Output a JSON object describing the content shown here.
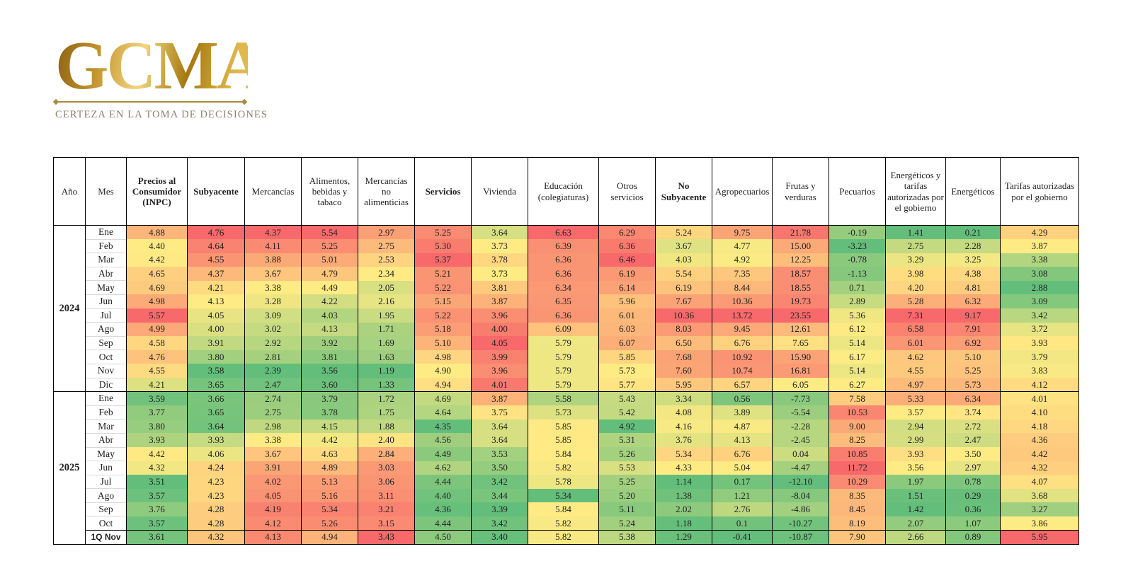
{
  "logo": {
    "text": "GCMA",
    "tagline": "CERTEZA EN LA TOMA DE DECISIONES",
    "gold_color": "#C0912A",
    "tagline_color": "#8B8073"
  },
  "chart_data": {
    "type": "heatmap",
    "title": "",
    "row_header_columns": [
      "Año",
      "Mes"
    ],
    "value_columns": [
      "Precios al Consumidor (INPC)",
      "Subyacente",
      "Mercancías",
      "Alimentos, bebidas y tabaco",
      "Mercancías no alimenticias",
      "Servicios",
      "Vivienda",
      "Educación (colegiaturas)",
      "Otros servicios",
      "No Subyacente",
      "Agropecuarios",
      "Frutas y verduras",
      "Pecuarios",
      "Energéticos y tarifas autorizadas por el gobierno",
      "Energéticos",
      "Tarifas autorizadas por el gobierno"
    ],
    "bold_column_indexes": [
      0,
      1,
      5,
      9
    ],
    "color_scale": {
      "low": "#63BE7B",
      "mid": "#FFEB84",
      "high": "#F8696B",
      "midpoint": "per-column median",
      "scope": "per-column",
      "high_values_are": "red"
    },
    "groups": [
      {
        "year": "2024",
        "rows": [
          {
            "month": "Ene",
            "values": [
              "4.88",
              "4.76",
              "4.37",
              "5.54",
              "2.97",
              "5.25",
              "3.64",
              "6.63",
              "6.29",
              "5.24",
              "9.75",
              "21.78",
              "-0.19",
              "1.41",
              "0.21",
              "4.29"
            ]
          },
          {
            "month": "Feb",
            "values": [
              "4.40",
              "4.64",
              "4.11",
              "5.25",
              "2.75",
              "5.30",
              "3.73",
              "6.39",
              "6.36",
              "3.67",
              "4.77",
              "15.00",
              "-3.23",
              "2.75",
              "2.28",
              "3.87"
            ]
          },
          {
            "month": "Mar",
            "values": [
              "4.42",
              "4.55",
              "3.88",
              "5.01",
              "2.53",
              "5.37",
              "3.78",
              "6.36",
              "6.46",
              "4.03",
              "4.92",
              "12.25",
              "-0.78",
              "3.29",
              "3.25",
              "3.38"
            ]
          },
          {
            "month": "Abr",
            "values": [
              "4.65",
              "4.37",
              "3.67",
              "4.79",
              "2.34",
              "5.21",
              "3.73",
              "6.36",
              "6.19",
              "5.54",
              "7.35",
              "18.57",
              "-1.13",
              "3.98",
              "4.38",
              "3.08"
            ]
          },
          {
            "month": "May",
            "values": [
              "4.69",
              "4.21",
              "3.38",
              "4.49",
              "2.05",
              "5.22",
              "3.81",
              "6.34",
              "6.14",
              "6.19",
              "8.44",
              "18.55",
              "0.71",
              "4.20",
              "4.81",
              "2.88"
            ]
          },
          {
            "month": "Jun",
            "values": [
              "4.98",
              "4.13",
              "3.28",
              "4.22",
              "2.16",
              "5.15",
              "3.87",
              "6.35",
              "5.96",
              "7.67",
              "10.36",
              "19.73",
              "2.89",
              "5.28",
              "6.32",
              "3.09"
            ]
          },
          {
            "month": "Jul",
            "values": [
              "5.57",
              "4.05",
              "3.09",
              "4.03",
              "1.95",
              "5.22",
              "3.96",
              "6.36",
              "6.01",
              "10.36",
              "13.72",
              "23.55",
              "5.36",
              "7.31",
              "9.17",
              "3.42"
            ]
          },
          {
            "month": "Ago",
            "values": [
              "4.99",
              "4.00",
              "3.02",
              "4.13",
              "1.71",
              "5.18",
              "4.00",
              "6.09",
              "6.03",
              "8.03",
              "9.45",
              "12.61",
              "6.12",
              "6.58",
              "7.91",
              "3.72"
            ]
          },
          {
            "month": "Sep",
            "values": [
              "4.58",
              "3.91",
              "2.92",
              "3.92",
              "1.69",
              "5.10",
              "4.05",
              "5.79",
              "6.07",
              "6.50",
              "6.76",
              "7.65",
              "5.14",
              "6.01",
              "6.92",
              "3.93"
            ]
          },
          {
            "month": "Oct",
            "values": [
              "4.76",
              "3.80",
              "2.81",
              "3.81",
              "1.63",
              "4.98",
              "3.99",
              "5.79",
              "5.85",
              "7.68",
              "10.92",
              "15.90",
              "6.17",
              "4.62",
              "5.10",
              "3.79"
            ]
          },
          {
            "month": "Nov",
            "values": [
              "4.55",
              "3.58",
              "2.39",
              "3.56",
              "1.19",
              "4.90",
              "3.96",
              "5.79",
              "5.73",
              "7.60",
              "10.74",
              "16.81",
              "5.14",
              "4.55",
              "5.25",
              "3.83"
            ]
          },
          {
            "month": "Dic",
            "values": [
              "4.21",
              "3.65",
              "2.47",
              "3.60",
              "1.33",
              "4.94",
              "4.01",
              "5.79",
              "5.77",
              "5.95",
              "6.57",
              "6.05",
              "6.27",
              "4.97",
              "5.73",
              "4.12"
            ]
          }
        ]
      },
      {
        "year": "2025",
        "rows": [
          {
            "month": "Ene",
            "values": [
              "3.59",
              "3.66",
              "2.74",
              "3.79",
              "1.72",
              "4.69",
              "3.87",
              "5.58",
              "5.43",
              "3.34",
              "0.56",
              "-7.73",
              "7.58",
              "5.33",
              "6.34",
              "4.01"
            ]
          },
          {
            "month": "Feb",
            "values": [
              "3.77",
              "3.65",
              "2.75",
              "3.78",
              "1.75",
              "4.64",
              "3.75",
              "5.73",
              "5.42",
              "4.08",
              "3.89",
              "-5.54",
              "10.53",
              "3.57",
              "3.74",
              "4.10"
            ]
          },
          {
            "month": "Mar",
            "values": [
              "3.80",
              "3.64",
              "2.98",
              "4.15",
              "1.88",
              "4.35",
              "3.64",
              "5.85",
              "4.92",
              "4.16",
              "4.87",
              "-2.28",
              "9.00",
              "2.94",
              "2.72",
              "4.18"
            ]
          },
          {
            "month": "Abr",
            "values": [
              "3.93",
              "3.93",
              "3.38",
              "4.42",
              "2.40",
              "4.56",
              "3.64",
              "5.85",
              "5.31",
              "3.76",
              "4.13",
              "-2.45",
              "8.25",
              "2.99",
              "2.47",
              "4.36"
            ]
          },
          {
            "month": "May",
            "values": [
              "4.42",
              "4.06",
              "3.67",
              "4.63",
              "2.84",
              "4.49",
              "3.53",
              "5.84",
              "5.26",
              "5.34",
              "6.76",
              "0.04",
              "10.85",
              "3.93",
              "3.50",
              "4.42"
            ]
          },
          {
            "month": "Jun",
            "values": [
              "4.32",
              "4.24",
              "3.91",
              "4.89",
              "3.03",
              "4.62",
              "3.50",
              "5.82",
              "5.53",
              "4.33",
              "5.04",
              "-4.47",
              "11.72",
              "3.56",
              "2.97",
              "4.32"
            ]
          },
          {
            "month": "Jul",
            "values": [
              "3.51",
              "4.23",
              "4.02",
              "5.13",
              "3.06",
              "4.44",
              "3.42",
              "5.78",
              "5.25",
              "1.14",
              "0.17",
              "-12.10",
              "10.29",
              "1.97",
              "0.78",
              "4.07"
            ]
          },
          {
            "month": "Ago",
            "values": [
              "3.57",
              "4.23",
              "4.05",
              "5.16",
              "3.11",
              "4.40",
              "3.44",
              "5.34",
              "5.20",
              "1.38",
              "1.21",
              "-8.04",
              "8.35",
              "1.51",
              "0.29",
              "3.68"
            ]
          },
          {
            "month": "Sep",
            "values": [
              "3.76",
              "4.28",
              "4.19",
              "5.34",
              "3.21",
              "4.36",
              "3.39",
              "5.84",
              "5.11",
              "2.02",
              "2.76",
              "-4.86",
              "8.45",
              "1.42",
              "0.36",
              "3.27"
            ]
          },
          {
            "month": "Oct",
            "values": [
              "3.57",
              "4.28",
              "4.12",
              "5.26",
              "3.15",
              "4.44",
              "3.42",
              "5.82",
              "5.24",
              "1.18",
              "0.1",
              "-10.27",
              "8.19",
              "2.07",
              "1.07",
              "3.86"
            ]
          },
          {
            "month": "1Q Nov",
            "bold": true,
            "values": [
              "3.61",
              "4.32",
              "4.13",
              "4.94",
              "3.43",
              "4.50",
              "3.40",
              "5.82",
              "5.38",
              "1.29",
              "-0.41",
              "-10.87",
              "7.90",
              "2.66",
              "0.89",
              "5.95"
            ]
          }
        ]
      }
    ]
  }
}
